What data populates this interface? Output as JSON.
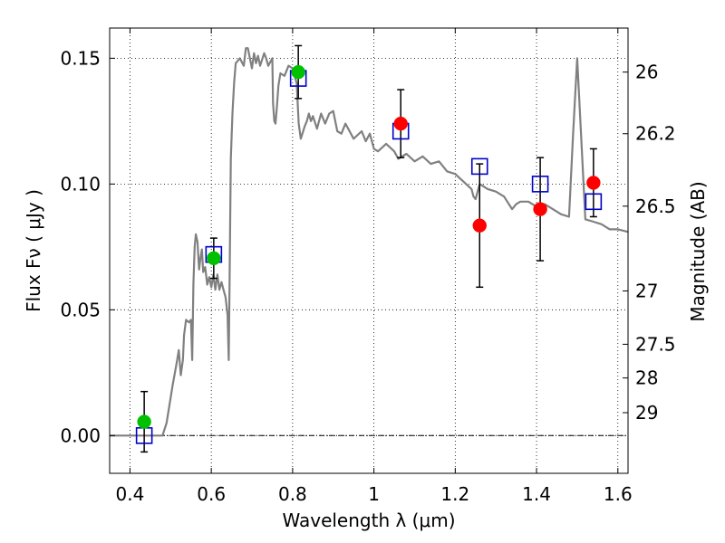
{
  "chart_data": {
    "type": "scatter",
    "xlabel": "Wavelength  λ (μm)",
    "ylabel": "Flux  Fν  ( μJy )",
    "y2label": "Magnitude (AB)",
    "xlim": [
      0.35,
      1.625
    ],
    "ylim": [
      -0.015,
      0.162
    ],
    "grid": true,
    "x_ticks": [
      {
        "value": 0.4,
        "label": "0.4"
      },
      {
        "value": 0.6,
        "label": "0.6"
      },
      {
        "value": 0.8,
        "label": "0.8"
      },
      {
        "value": 1.0,
        "label": "1"
      },
      {
        "value": 1.2,
        "label": "1.2"
      },
      {
        "value": 1.4,
        "label": "1.4"
      },
      {
        "value": 1.6,
        "label": "1.6"
      }
    ],
    "y_ticks": [
      {
        "value": 0.0,
        "label": "0.00"
      },
      {
        "value": 0.05,
        "label": "0.05"
      },
      {
        "value": 0.1,
        "label": "0.10"
      },
      {
        "value": 0.15,
        "label": "0.15"
      }
    ],
    "y2_ticks": [
      {
        "flux": 0.1445,
        "label": "26"
      },
      {
        "flux": 0.12,
        "label": "26.2"
      },
      {
        "flux": 0.0912,
        "label": "26.5"
      },
      {
        "flux": 0.0575,
        "label": "27"
      },
      {
        "flux": 0.0363,
        "label": "27.5"
      },
      {
        "flux": 0.0229,
        "label": "28"
      },
      {
        "flux": 0.0091,
        "label": "29"
      }
    ],
    "series": [
      {
        "kind": "model_sed_line",
        "color": "#808080",
        "x": [
          0.35,
          0.48,
          0.49,
          0.505,
          0.515,
          0.52,
          0.525,
          0.53,
          0.533,
          0.538,
          0.545,
          0.55,
          0.553,
          0.556,
          0.559,
          0.562,
          0.566,
          0.57,
          0.573,
          0.577,
          0.58,
          0.585,
          0.59,
          0.595,
          0.6,
          0.605,
          0.61,
          0.615,
          0.62,
          0.625,
          0.63,
          0.635,
          0.64,
          0.643,
          0.645,
          0.648,
          0.652,
          0.656,
          0.66,
          0.67,
          0.68,
          0.685,
          0.69,
          0.7,
          0.705,
          0.71,
          0.715,
          0.72,
          0.73,
          0.735,
          0.74,
          0.75,
          0.752,
          0.755,
          0.758,
          0.761,
          0.765,
          0.77,
          0.78,
          0.79,
          0.8,
          0.81,
          0.815,
          0.82,
          0.83,
          0.835,
          0.84,
          0.845,
          0.85,
          0.86,
          0.87,
          0.88,
          0.89,
          0.9,
          0.91,
          0.92,
          0.93,
          0.95,
          0.97,
          0.98,
          0.99,
          1.0,
          1.01,
          1.03,
          1.05,
          1.06,
          1.08,
          1.1,
          1.12,
          1.14,
          1.16,
          1.18,
          1.2,
          1.22,
          1.24,
          1.245,
          1.25,
          1.26,
          1.28,
          1.3,
          1.32,
          1.34,
          1.35,
          1.36,
          1.38,
          1.4,
          1.42,
          1.44,
          1.46,
          1.48,
          1.49,
          1.5,
          1.52,
          1.54,
          1.56,
          1.58,
          1.6,
          1.625
        ],
        "y": [
          0.0,
          0.0,
          0.005,
          0.02,
          0.029,
          0.034,
          0.024,
          0.03,
          0.04,
          0.046,
          0.045,
          0.046,
          0.03,
          0.06,
          0.075,
          0.08,
          0.077,
          0.066,
          0.07,
          0.074,
          0.065,
          0.067,
          0.06,
          0.063,
          0.059,
          0.064,
          0.058,
          0.064,
          0.058,
          0.061,
          0.058,
          0.055,
          0.048,
          0.03,
          0.06,
          0.11,
          0.128,
          0.14,
          0.148,
          0.15,
          0.147,
          0.154,
          0.154,
          0.146,
          0.152,
          0.148,
          0.151,
          0.147,
          0.152,
          0.15,
          0.147,
          0.15,
          0.132,
          0.125,
          0.124,
          0.13,
          0.139,
          0.144,
          0.143,
          0.147,
          0.146,
          0.14,
          0.124,
          0.118,
          0.123,
          0.125,
          0.128,
          0.125,
          0.127,
          0.122,
          0.128,
          0.124,
          0.128,
          0.129,
          0.121,
          0.12,
          0.124,
          0.118,
          0.121,
          0.117,
          0.12,
          0.114,
          0.113,
          0.116,
          0.113,
          0.11,
          0.112,
          0.109,
          0.111,
          0.108,
          0.109,
          0.105,
          0.104,
          0.101,
          0.098,
          0.095,
          0.094,
          0.1,
          0.098,
          0.097,
          0.095,
          0.09,
          0.092,
          0.093,
          0.093,
          0.091,
          0.092,
          0.09,
          0.088,
          0.087,
          0.12,
          0.15,
          0.086,
          0.085,
          0.084,
          0.082,
          0.082,
          0.081
        ]
      },
      {
        "kind": "model_band_flux",
        "marker": "open-square",
        "color": "#0000cc",
        "x": [
          0.435,
          0.606,
          0.814,
          1.066,
          1.26,
          1.409,
          1.54
        ],
        "y": [
          0.0,
          0.072,
          0.142,
          0.121,
          0.107,
          0.1,
          0.093
        ]
      },
      {
        "kind": "hst_optical_flux",
        "marker": "filled-circle",
        "color": "#00c000",
        "x": [
          0.435,
          0.606,
          0.814
        ],
        "y": [
          0.0055,
          0.0705,
          0.1445
        ],
        "yerr": [
          0.012,
          0.008,
          0.0105
        ]
      },
      {
        "kind": "hst_nir_flux",
        "marker": "filled-circle",
        "color": "#ff0000",
        "x": [
          1.066,
          1.26,
          1.409,
          1.54
        ],
        "y": [
          0.124,
          0.0835,
          0.09,
          0.1005
        ],
        "yerr": [
          0.0135,
          0.0245,
          0.0205,
          0.0135
        ]
      }
    ]
  }
}
